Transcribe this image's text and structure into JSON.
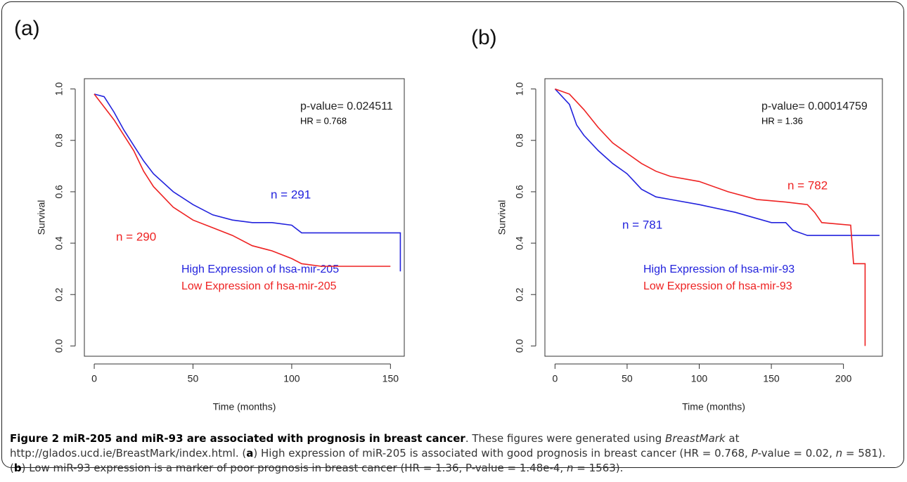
{
  "chart_data": [
    {
      "type": "line",
      "panel": "(a)",
      "xlabel": "Time (months)",
      "ylabel": "Survival",
      "xlim": [
        -5,
        157
      ],
      "ylim": [
        -0.04,
        1.04
      ],
      "xticks": [
        0,
        50,
        100,
        150
      ],
      "yticks": [
        {
          "value": 0,
          "label": "0.0"
        },
        0.2,
        0.4,
        0.6,
        0.8,
        {
          "value": 1,
          "label": "1.0"
        }
      ],
      "series": [
        {
          "name": "High Expression of hsa-mir-205",
          "color": "#2222dd",
          "x": [
            0,
            5,
            10,
            15,
            20,
            25,
            30,
            40,
            50,
            60,
            70,
            80,
            90,
            100,
            105,
            120,
            150,
            155,
            155
          ],
          "values": [
            0.98,
            0.97,
            0.91,
            0.84,
            0.78,
            0.72,
            0.67,
            0.6,
            0.55,
            0.51,
            0.49,
            0.48,
            0.48,
            0.47,
            0.44,
            0.44,
            0.44,
            0.44,
            0.29
          ]
        },
        {
          "name": "Low Expression of hsa-mir-205",
          "color": "#ee2222",
          "x": [
            0,
            10,
            20,
            25,
            30,
            40,
            50,
            60,
            70,
            80,
            90,
            100,
            105,
            115,
            150
          ],
          "values": [
            0.98,
            0.88,
            0.76,
            0.68,
            0.62,
            0.54,
            0.49,
            0.46,
            0.43,
            0.39,
            0.37,
            0.34,
            0.32,
            0.31,
            0.31
          ]
        }
      ],
      "annotations": [
        {
          "text": "p-value= 0.024511",
          "color": "#222222"
        },
        {
          "text": "HR = 0.768",
          "color": "#000000"
        },
        {
          "text": "n = 291",
          "color": "#2222dd"
        },
        {
          "text": "n = 290",
          "color": "#ee2222"
        }
      ]
    },
    {
      "type": "line",
      "panel": "(b)",
      "xlabel": "Time (months)",
      "ylabel": "Survival",
      "xlim": [
        -7,
        227
      ],
      "ylim": [
        -0.04,
        1.04
      ],
      "xticks": [
        0,
        50,
        100,
        150,
        200
      ],
      "yticks": [
        {
          "value": 0,
          "label": "0.0"
        },
        0.2,
        0.4,
        0.6,
        0.8,
        {
          "value": 1,
          "label": "1.0"
        }
      ],
      "series": [
        {
          "name": "High Expression of hsa-mir-93",
          "color": "#2222dd",
          "x": [
            0,
            10,
            15,
            20,
            30,
            40,
            50,
            60,
            70,
            80,
            100,
            125,
            150,
            160,
            165,
            175,
            225
          ],
          "values": [
            1.0,
            0.94,
            0.86,
            0.82,
            0.76,
            0.71,
            0.67,
            0.61,
            0.58,
            0.57,
            0.55,
            0.52,
            0.48,
            0.48,
            0.45,
            0.43,
            0.43
          ]
        },
        {
          "name": "Low Expression of hsa-mir-93",
          "color": "#ee2222",
          "x": [
            0,
            10,
            20,
            30,
            40,
            50,
            60,
            70,
            80,
            100,
            120,
            140,
            160,
            175,
            180,
            185,
            205,
            207,
            215,
            215
          ],
          "values": [
            1.0,
            0.98,
            0.92,
            0.85,
            0.79,
            0.75,
            0.71,
            0.68,
            0.66,
            0.64,
            0.6,
            0.57,
            0.56,
            0.55,
            0.52,
            0.48,
            0.47,
            0.32,
            0.32,
            0.0
          ]
        }
      ],
      "annotations": [
        {
          "text": "p-value= 0.00014759",
          "color": "#222222"
        },
        {
          "text": "HR = 1.36",
          "color": "#000000"
        },
        {
          "text": "n = 782",
          "color": "#ee2222"
        },
        {
          "text": "n = 781",
          "color": "#2222dd"
        }
      ]
    }
  ],
  "caption": {
    "segments": [
      {
        "text": "Figure 2 miR-205 and miR-93 are associated with prognosis in breast cancer",
        "style": "bold"
      },
      {
        "text": ". These figures were generated using ",
        "style": "normal"
      },
      {
        "text": "BreastMark",
        "style": "italic"
      },
      {
        "text": " at http://glados.ucd.ie/BreastMark/index.html. (",
        "style": "normal"
      },
      {
        "text": "a",
        "style": "bold"
      },
      {
        "text": ") High expression of miR-205 is associated with good prognosis in breast cancer (HR = 0.768, ",
        "style": "normal"
      },
      {
        "text": "P",
        "style": "italic"
      },
      {
        "text": "-value = 0.02, ",
        "style": "normal"
      },
      {
        "text": "n",
        "style": "italic"
      },
      {
        "text": " = 581). (",
        "style": "normal"
      },
      {
        "text": "b",
        "style": "bold"
      },
      {
        "text": ") Low miR-93 expression is a marker of poor prognosis in breast cancer (HR = 1.36, P-value = 1.48e-4, ",
        "style": "normal"
      },
      {
        "text": "n",
        "style": "italic"
      },
      {
        "text": " = 1563).",
        "style": "normal"
      }
    ]
  }
}
